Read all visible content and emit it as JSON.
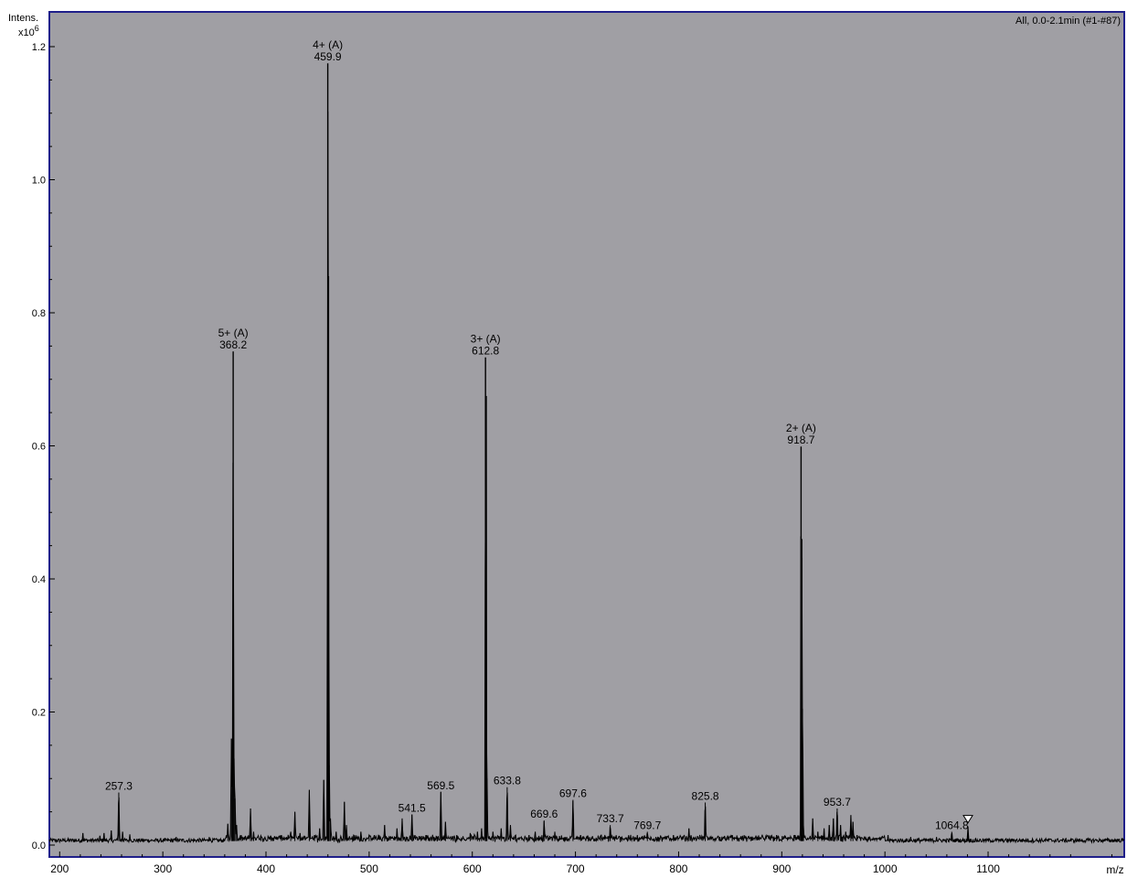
{
  "chart_data": {
    "type": "line",
    "title": "",
    "header_right": "All, 0.0-2.1min (#1-#87)",
    "ylabel": "Intens.",
    "yscale_label": "x10",
    "yscale_exp": "6",
    "xlabel": "m/z",
    "xlim": [
      190,
      1232
    ],
    "ylim": [
      0,
      1.24
    ],
    "xticks": [
      200,
      300,
      400,
      500,
      600,
      700,
      800,
      900,
      1000,
      1100
    ],
    "yticks": [
      "0.0",
      "0.2",
      "0.4",
      "0.6",
      "0.8",
      "1.0",
      "1.2"
    ],
    "grid": false,
    "background": "#a09fa4",
    "frame_color": "#1f1f8a",
    "series": [
      {
        "peaks": [
          [
            222.5,
            0.018
          ],
          [
            239,
            0.014
          ],
          [
            243,
            0.018
          ],
          [
            250,
            0.022
          ],
          [
            257.3,
            0.079
          ],
          [
            261,
            0.02
          ],
          [
            268,
            0.016
          ],
          [
            285,
            0.008
          ],
          [
            302,
            0.01
          ],
          [
            313,
            0.012
          ],
          [
            330,
            0.01
          ],
          [
            345,
            0.012
          ],
          [
            363,
            0.032
          ],
          [
            366.5,
            0.16
          ],
          [
            367.4,
            0.13
          ],
          [
            368.2,
            0.742
          ],
          [
            369.1,
            0.13
          ],
          [
            370,
            0.07
          ],
          [
            371.5,
            0.03
          ],
          [
            376,
            0.015
          ],
          [
            385,
            0.055
          ],
          [
            388,
            0.02
          ],
          [
            395,
            0.014
          ],
          [
            405,
            0.012
          ],
          [
            415,
            0.015
          ],
          [
            424,
            0.02
          ],
          [
            428,
            0.05
          ],
          [
            433,
            0.018
          ],
          [
            442,
            0.083
          ],
          [
            447,
            0.015
          ],
          [
            452,
            0.025
          ],
          [
            456,
            0.098
          ],
          [
            459.9,
            1.175
          ],
          [
            460.6,
            0.855
          ],
          [
            461.3,
            0.12
          ],
          [
            462.5,
            0.04
          ],
          [
            468,
            0.02
          ],
          [
            476,
            0.065
          ],
          [
            478,
            0.03
          ],
          [
            485,
            0.015
          ],
          [
            492,
            0.02
          ],
          [
            500,
            0.015
          ],
          [
            515,
            0.03
          ],
          [
            527,
            0.025
          ],
          [
            532,
            0.04
          ],
          [
            541.5,
            0.046
          ],
          [
            555,
            0.015
          ],
          [
            563,
            0.012
          ],
          [
            569.5,
            0.08
          ],
          [
            574,
            0.035
          ],
          [
            585,
            0.015
          ],
          [
            598,
            0.018
          ],
          [
            605,
            0.02
          ],
          [
            609,
            0.025
          ],
          [
            612.8,
            0.733
          ],
          [
            613.5,
            0.675
          ],
          [
            614.2,
            0.1
          ],
          [
            620,
            0.02
          ],
          [
            628,
            0.025
          ],
          [
            633.8,
            0.087
          ],
          [
            637,
            0.03
          ],
          [
            642,
            0.015
          ],
          [
            655,
            0.015
          ],
          [
            661,
            0.02
          ],
          [
            669.6,
            0.037
          ],
          [
            680,
            0.02
          ],
          [
            697.6,
            0.068
          ],
          [
            705,
            0.015
          ],
          [
            725,
            0.015
          ],
          [
            733.7,
            0.03
          ],
          [
            745,
            0.012
          ],
          [
            769.7,
            0.02
          ],
          [
            780,
            0.012
          ],
          [
            795,
            0.015
          ],
          [
            810,
            0.025
          ],
          [
            825.8,
            0.064
          ],
          [
            840,
            0.012
          ],
          [
            852,
            0.015
          ],
          [
            870,
            0.012
          ],
          [
            895,
            0.015
          ],
          [
            912,
            0.015
          ],
          [
            918.7,
            0.599
          ],
          [
            919.4,
            0.46
          ],
          [
            920.1,
            0.205
          ],
          [
            921,
            0.03
          ],
          [
            930,
            0.04
          ],
          [
            935,
            0.02
          ],
          [
            941,
            0.025
          ],
          [
            946,
            0.03
          ],
          [
            950,
            0.04
          ],
          [
            953.7,
            0.055
          ],
          [
            957,
            0.03
          ],
          [
            962,
            0.02
          ],
          [
            967,
            0.045
          ],
          [
            969,
            0.035
          ],
          [
            973,
            0.015
          ],
          [
            990,
            0.01
          ],
          [
            1003,
            0.015
          ],
          [
            1025,
            0.012
          ],
          [
            1050,
            0.012
          ],
          [
            1064.8,
            0.02
          ],
          [
            1070,
            0.01
          ],
          [
            1080.5,
            0.028
          ],
          [
            1100,
            0.008
          ],
          [
            1125,
            0.008
          ],
          [
            1150,
            0.007
          ],
          [
            1175,
            0.007
          ],
          [
            1200,
            0.006
          ]
        ]
      }
    ],
    "annotations": [
      {
        "x": 257.3,
        "y": 0.079,
        "lines": [
          "257.3"
        ]
      },
      {
        "x": 368.2,
        "y": 0.742,
        "lines": [
          "5+ (A)",
          "368.2"
        ]
      },
      {
        "x": 459.9,
        "y": 1.175,
        "lines": [
          "4+ (A)",
          "459.9"
        ]
      },
      {
        "x": 541.5,
        "y": 0.046,
        "lines": [
          "541.5"
        ]
      },
      {
        "x": 569.5,
        "y": 0.08,
        "lines": [
          "569.5"
        ]
      },
      {
        "x": 612.8,
        "y": 0.733,
        "lines": [
          "3+ (A)",
          "612.8"
        ]
      },
      {
        "x": 633.8,
        "y": 0.087,
        "lines": [
          "633.8"
        ]
      },
      {
        "x": 669.6,
        "y": 0.037,
        "lines": [
          "669.6"
        ]
      },
      {
        "x": 697.6,
        "y": 0.068,
        "lines": [
          "697.6"
        ]
      },
      {
        "x": 733.7,
        "y": 0.03,
        "lines": [
          "733.7"
        ]
      },
      {
        "x": 769.7,
        "y": 0.02,
        "lines": [
          "769.7"
        ]
      },
      {
        "x": 825.8,
        "y": 0.064,
        "lines": [
          "825.8"
        ]
      },
      {
        "x": 918.7,
        "y": 0.599,
        "lines": [
          "2+ (A)",
          "918.7"
        ]
      },
      {
        "x": 953.7,
        "y": 0.055,
        "lines": [
          "953.7"
        ]
      },
      {
        "x": 1064.8,
        "y": 0.02,
        "lines": [
          "1064.8"
        ]
      }
    ],
    "markers": [
      {
        "x": 1080.5,
        "y": 0.028,
        "shape": "triangle-down-icon"
      }
    ]
  }
}
